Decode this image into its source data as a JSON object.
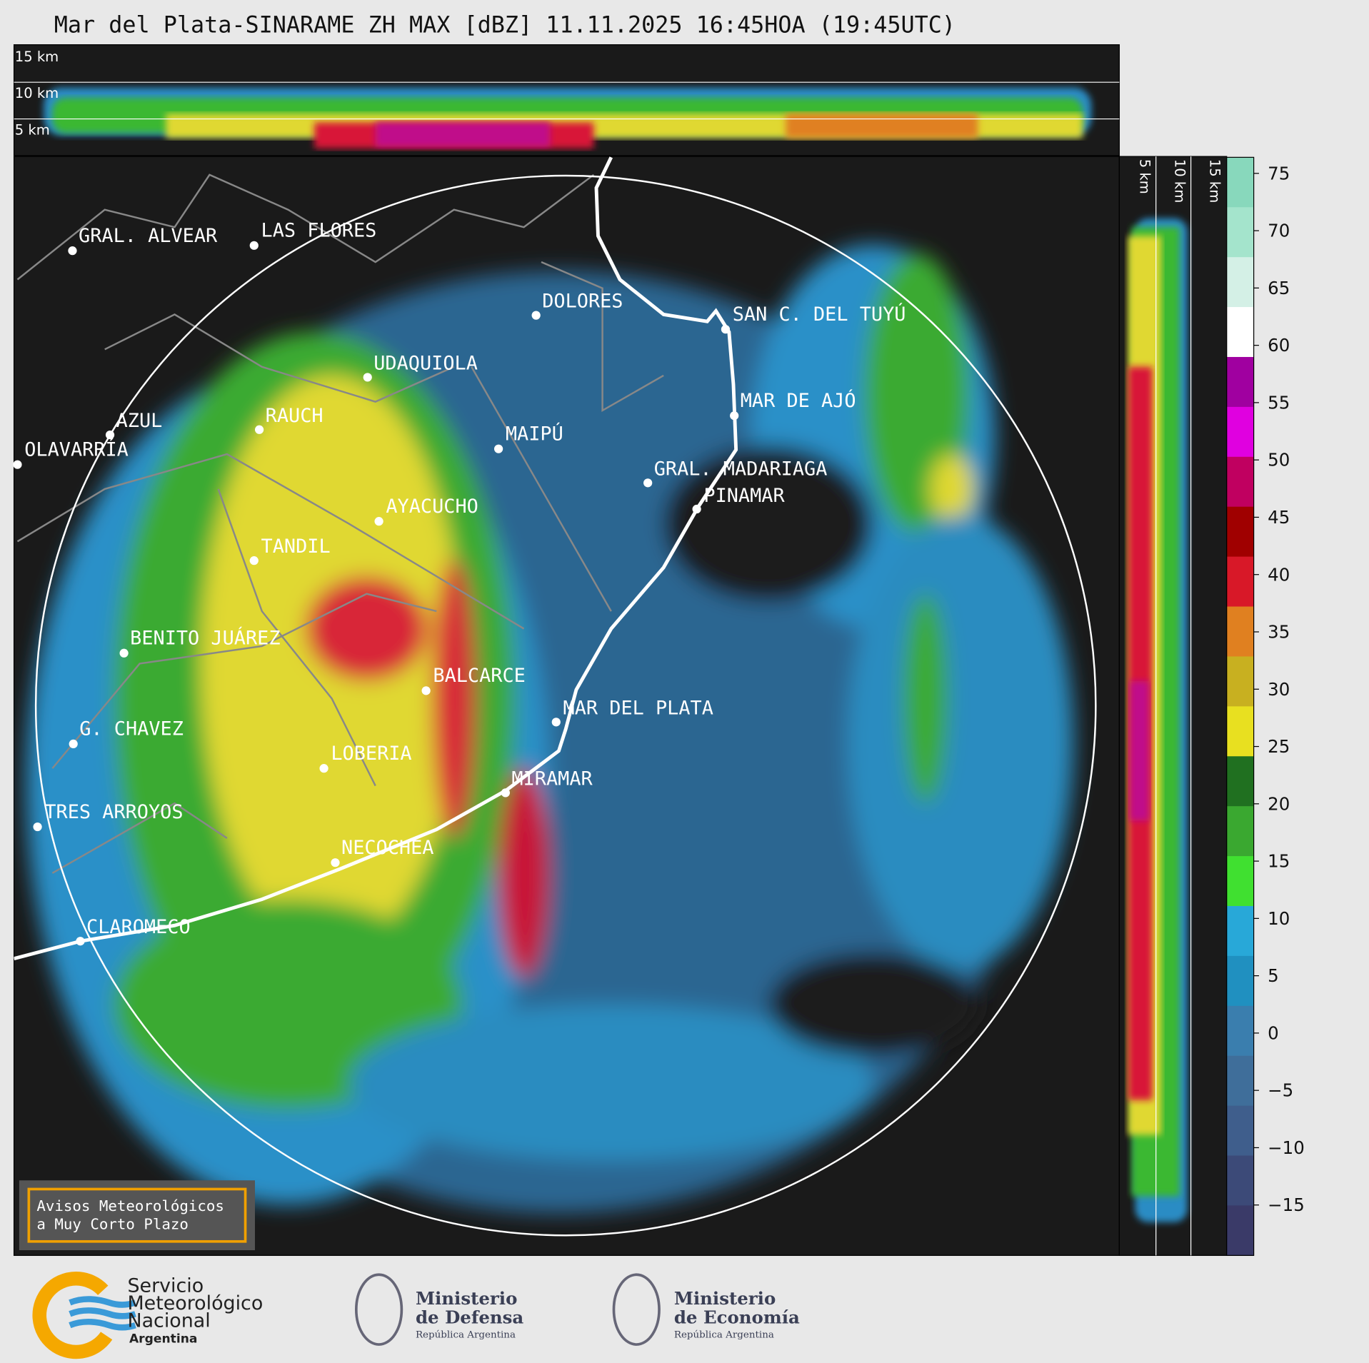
{
  "title": "Mar del Plata-SINARAME ZH MAX [dBZ] 11.11.2025 16:45HOA (19:45UTC)",
  "top_panel": {
    "height_labels": [
      "15 km",
      "10 km",
      "5 km"
    ]
  },
  "side_panel": {
    "height_labels": [
      "5 km",
      "10 km",
      "15 km"
    ]
  },
  "map": {
    "cities": [
      "GRAL. ALVEAR",
      "LAS FLORES",
      "DOLORES",
      "SAN C. DEL TUYÚ",
      "UDAQUIOLA",
      "MAR DE AJÓ",
      "AZUL",
      "RAUCH",
      "MAIPÚ",
      "OLAVARRÍA",
      "GRAL. MADARIAGA",
      "PINAMAR",
      "AYACUCHO",
      "TANDIL",
      "BENITO JUÁREZ",
      "BALCARCE",
      "MAR DEL PLATA",
      "G. CHAVEZ",
      "LOBERIA",
      "MIRAMAR",
      "TRES ARROYOS",
      "NECOCHEA",
      "CLAROMECO"
    ]
  },
  "colorbar": {
    "lim": [
      -19.4,
      76.4
    ],
    "ticks": [
      75,
      70,
      65,
      60,
      55,
      50,
      45,
      40,
      35,
      30,
      25,
      20,
      15,
      10,
      5,
      0,
      {
        "value": -5,
        "label": "−5"
      },
      {
        "value": -10,
        "label": "−10"
      },
      {
        "value": -15,
        "label": "−15"
      }
    ],
    "colors": [
      "#88d8bc",
      "#a4e4cc",
      "#d4f0e6",
      "#ffffff",
      "#a000a0",
      "#e000e0",
      "#c00060",
      "#a00000",
      "#d81828",
      "#e08020",
      "#c8b020",
      "#e8e020",
      "#207020",
      "#3aa830",
      "#40e030",
      "#28a8d8",
      "#2090c0",
      "#3a7eae",
      "#3f6e9a",
      "#3f5e8c",
      "#3c4a78",
      "#3a3a68"
    ]
  },
  "notice": [
    "Avisos Meteorológicos",
    "a Muy Corto Plazo"
  ],
  "footer": {
    "smn": [
      "Servicio",
      "Meteorológico",
      "Nacional",
      "Argentina"
    ],
    "defensa": [
      "Ministerio",
      "de Defensa",
      "República Argentina"
    ],
    "economia": [
      "Ministerio",
      "de Economía",
      "República Argentina"
    ]
  }
}
